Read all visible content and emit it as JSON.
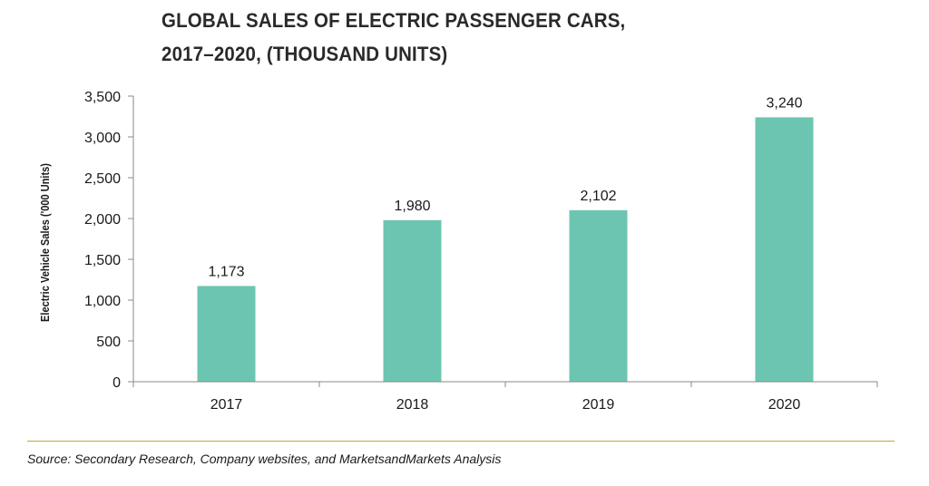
{
  "chart_data": {
    "type": "bar",
    "title_lines": [
      "GLOBAL SALES OF ELECTRIC PASSENGER CARS,",
      "2017–2020, (THOUSAND UNITS)"
    ],
    "categories": [
      "2017",
      "2018",
      "2019",
      "2020"
    ],
    "values": [
      1173,
      1980,
      2102,
      3240
    ],
    "data_labels": [
      "1,173",
      "1,980",
      "2,102",
      "3,240"
    ],
    "xlabel": "",
    "ylabel": "Electric Vehicle Sales ('000 Units)",
    "ylim": [
      0,
      3500
    ],
    "yticks": [
      0,
      500,
      1000,
      1500,
      2000,
      2500,
      3000,
      3500
    ],
    "ytick_labels": [
      "0",
      "500",
      "1,000",
      "1,500",
      "2,000",
      "2,500",
      "3,000",
      "3,500"
    ],
    "bar_color": "#6cc5b0",
    "grid": false,
    "legend": "none"
  },
  "source": "Source: Secondary Research, Company websites, and MarketsandMarkets Analysis",
  "colors": {
    "title": "#2a2a2a",
    "axis": "#8a8a8a",
    "divider": "#c7a43a"
  }
}
